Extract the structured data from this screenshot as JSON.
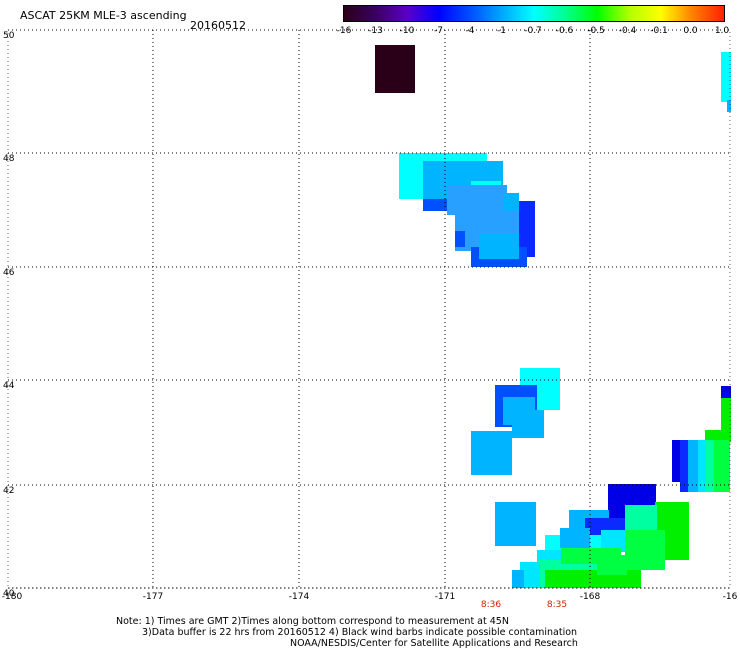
{
  "header": {
    "title": "ASCAT 25KM MLE-3 ascending",
    "date": "20160512"
  },
  "colorbar": {
    "labels": [
      "-16",
      "-13",
      "-10",
      "-7",
      "-4",
      "-1",
      "-0.7",
      "-0.6",
      "-0.5",
      "-0.4",
      "-0.1",
      "0.0",
      "1.0"
    ],
    "colors": [
      "#2a0018",
      "#3a0060",
      "#5a00c8",
      "#0000ff",
      "#0050ff",
      "#00a8ff",
      "#00ffff",
      "#00ff90",
      "#00ff00",
      "#b0ff00",
      "#ffff00",
      "#ff8000",
      "#ff2000"
    ]
  },
  "map": {
    "lat_labels": [
      "50",
      "48",
      "46",
      "44",
      "42",
      "40"
    ],
    "lon_labels": [
      "-180",
      "-177",
      "-174",
      "-171",
      "-168",
      "-16"
    ],
    "time_labels": [
      "8:36",
      "8:35"
    ],
    "grid_style": "dotted",
    "swath_colors": {
      "dark": "#2a0018",
      "cyan": "#00ffff",
      "sky": "#00b4ff",
      "lightblue": "#28a0ff",
      "blue": "#0050ff",
      "royal": "#0a2aff",
      "deepblue": "#0000e6",
      "aqua": "#00e6ff",
      "seafoam": "#00ffa0",
      "green": "#00ff40",
      "lime": "#00f000"
    }
  },
  "notes": {
    "line1": "Note: 1) Times are GMT 2)Times along bottom correspond to measurement at 45N",
    "line2": "3)Data buffer is 22 hrs from 20160512 4) Black wind barbs indicate possible contamination",
    "line3": "NOAA/NESDIS/Center for Satellite Applications and Research"
  }
}
